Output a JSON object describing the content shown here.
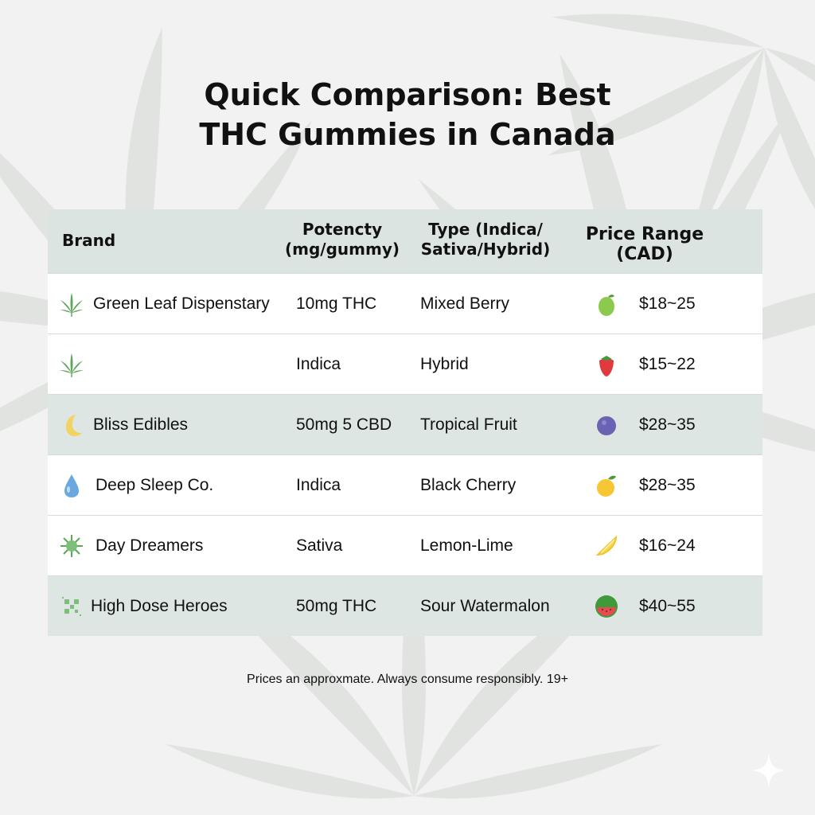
{
  "title_line1": "Quick Comparison: Best",
  "title_line2": "THC Gummies in Canada",
  "headers": {
    "brand": "Brand",
    "potency_1": "Potencty",
    "potency_2": "(mg/gummy)",
    "type_1": "Type (Indica/",
    "type_2": "Sativa/Hybrid)",
    "price_1": "Price Range",
    "price_2": "(CAD)"
  },
  "rows": [
    {
      "brand_icon": "cannabis-leaf-icon",
      "brand": "Green Leaf Dispenstary",
      "potency": "10mg THC",
      "type": "Mixed Berry",
      "fruit_icon": "green-apple-icon",
      "price": "$18~25",
      "bg": "#ffffff"
    },
    {
      "brand_icon": "cannabis-leaf-icon",
      "brand": "",
      "potency": "Indica",
      "type": "Hybrid",
      "fruit_icon": "strawberry-icon",
      "price": "$15~22",
      "bg": "#ffffff"
    },
    {
      "brand_icon": "crescent-moon-icon",
      "brand": "Bliss Edibles",
      "potency": "50mg 5 CBD",
      "type": "Tropical Fruit",
      "fruit_icon": "blueberry-icon",
      "price": "$28~35",
      "bg": "#dde6e2"
    },
    {
      "brand_icon": "water-drop-icon",
      "brand": "Deep Sleep Co.",
      "potency": "Indica",
      "type": "Black Cherry",
      "fruit_icon": "orange-icon",
      "price": "$28~35",
      "bg": "#ffffff"
    },
    {
      "brand_icon": "sun-icon",
      "brand": "Day Dreamers",
      "potency": "Sativa",
      "type": "Lemon-Lime",
      "fruit_icon": "lemon-slice-icon",
      "price": "$16~24",
      "bg": "#ffffff"
    },
    {
      "brand_icon": "qr-code-icon",
      "brand": "High Dose Heroes",
      "potency": "50mg THC",
      "type": "Sour Watermalon",
      "fruit_icon": "watermelon-icon",
      "price": "$40~55",
      "bg": "#dde6e2"
    }
  ],
  "footer": "Prices an approxmate. Always consume responsibly. 19+",
  "colors": {
    "header_bg": "#dbe4e0",
    "tint_row": "#dde6e2",
    "leaf_green": "#5fa55a"
  }
}
